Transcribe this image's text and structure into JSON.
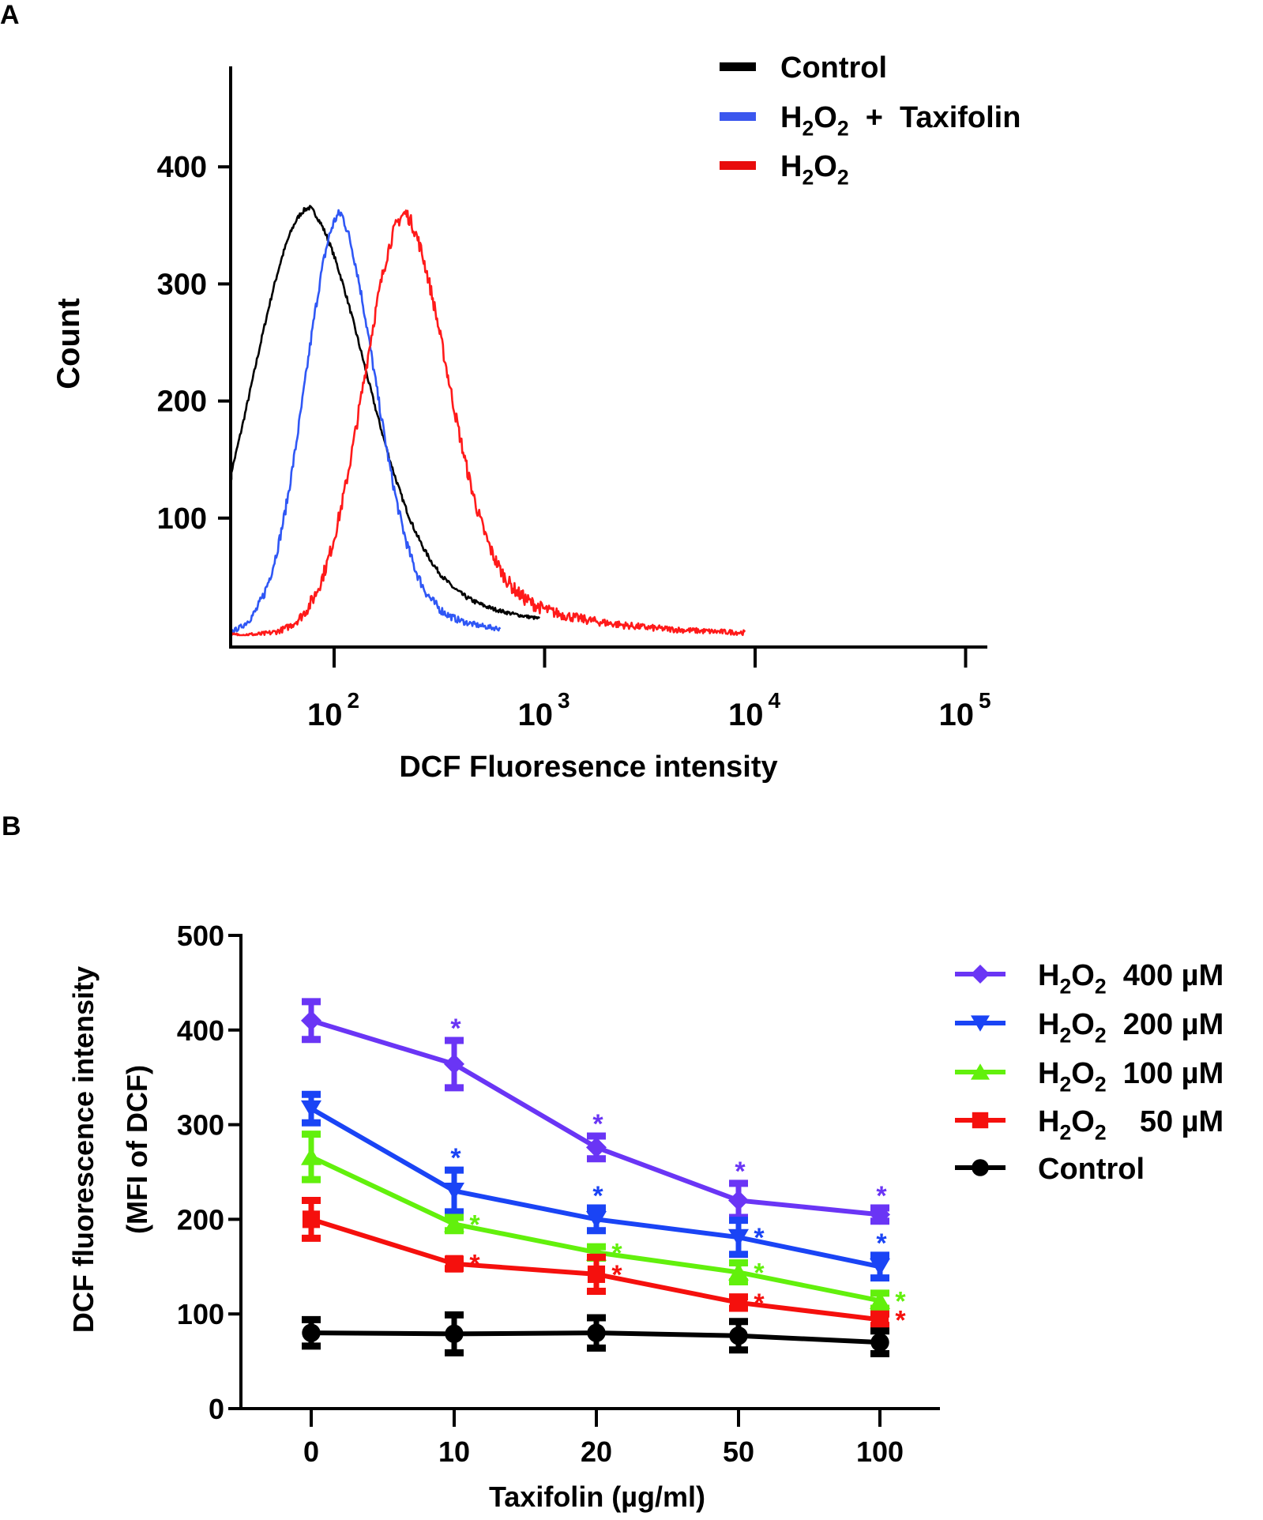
{
  "chart_data": [
    {
      "panel_label": "A",
      "type": "line",
      "subtype": "flow-cytometry-histogram",
      "title": "",
      "xlabel": "DCF Fluoresence intensity",
      "ylabel": "Count",
      "xscale": "log",
      "xlim": [
        32,
        150000
      ],
      "ylim": [
        0,
        470
      ],
      "x_ticks": [
        {
          "value": 100,
          "base": "10",
          "exp": "2"
        },
        {
          "value": 1000,
          "base": "10",
          "exp": "3"
        },
        {
          "value": 10000,
          "base": "10",
          "exp": "4"
        },
        {
          "value": 100000,
          "base": "10",
          "exp": "5"
        }
      ],
      "y_ticks": [
        100,
        200,
        300,
        400
      ],
      "grid": false,
      "legend_position": "top-right",
      "legend": [
        {
          "label": "Control",
          "sub": [],
          "color": "#000000"
        },
        {
          "label_parts": [
            "H",
            "2",
            "O",
            "2",
            "  +  Taxifolin"
          ],
          "color": "#3b57ee"
        },
        {
          "label_parts": [
            "H",
            "2",
            "O",
            "2",
            ""
          ],
          "color": "#e80c0c"
        }
      ],
      "series": [
        {
          "name": "Control",
          "color": "#000000",
          "peak_x": 77,
          "peak_count": 365,
          "log_sigma": 0.27,
          "right_tail": 0.55,
          "noise": 4,
          "x_range": [
            32,
            950
          ]
        },
        {
          "name": "H2O2 + Taxifolin",
          "color": "#2f57f5",
          "peak_x": 108,
          "peak_count": 360,
          "log_sigma": 0.17,
          "right_tail": 0.26,
          "noise": 9,
          "x_range": [
            32,
            620
          ]
        },
        {
          "name": "H2O2",
          "color": "#ff1a1a",
          "peak_x": 220,
          "peak_count": 360,
          "log_sigma": 0.2,
          "right_tail": 0.42,
          "noise": 12,
          "x_range": [
            32,
            9000
          ]
        }
      ]
    },
    {
      "panel_label": "B",
      "type": "line",
      "title": "",
      "xlabel": "Taxifolin (µg/ml)",
      "ylabel": [
        "DCF fluorescence intensity",
        "(MFI of DCF)"
      ],
      "categories": [
        "0",
        "10",
        "20",
        "50",
        "100"
      ],
      "ylim": [
        0,
        500
      ],
      "y_ticks": [
        0,
        100,
        200,
        300,
        400,
        500
      ],
      "grid": false,
      "legend_position": "right",
      "legend": [
        {
          "label_parts": [
            "H",
            "2",
            "O",
            "2",
            "  400 µM"
          ],
          "color": "#6a35f5",
          "marker": "diamond"
        },
        {
          "label_parts": [
            "H",
            "2",
            "O",
            "2",
            "  200 µM"
          ],
          "color": "#1a44f5",
          "marker": "triangle-down"
        },
        {
          "label_parts": [
            "H",
            "2",
            "O",
            "2",
            "  100 µM"
          ],
          "color": "#62f00c",
          "marker": "triangle-up"
        },
        {
          "label_parts": [
            "H",
            "2",
            "O",
            "2",
            "    50 µM"
          ],
          "color": "#f5100d",
          "marker": "square"
        },
        {
          "label_parts": [
            "Control",
            "",
            "",
            "",
            ""
          ],
          "color": "#000000",
          "marker": "circle"
        }
      ],
      "series": [
        {
          "name": "H2O2 400 µM",
          "color": "#6a35f5",
          "marker": "diamond",
          "values": [
            410,
            364,
            276,
            220,
            205
          ],
          "errors": [
            20,
            25,
            12,
            18,
            7
          ],
          "significant": [
            false,
            true,
            true,
            true,
            true
          ],
          "star_pos": [
            "",
            "above",
            "above",
            "above",
            "above"
          ]
        },
        {
          "name": "H2O2 200 µM",
          "color": "#1a44f5",
          "marker": "triangle-down",
          "values": [
            317,
            230,
            200,
            181,
            150
          ],
          "errors": [
            15,
            22,
            12,
            18,
            12
          ],
          "significant": [
            false,
            true,
            true,
            true,
            true
          ],
          "star_pos": [
            "",
            "above",
            "above",
            "right",
            "above"
          ]
        },
        {
          "name": "H2O2 100 µM",
          "color": "#62f00c",
          "marker": "triangle-up",
          "values": [
            266,
            195,
            165,
            144,
            114
          ],
          "errors": [
            24,
            7,
            6,
            10,
            8
          ],
          "significant": [
            false,
            true,
            true,
            true,
            true
          ],
          "star_pos": [
            "",
            "right",
            "right",
            "right",
            "right"
          ]
        },
        {
          "name": "H2O2 50 µM",
          "color": "#f5100d",
          "marker": "square",
          "values": [
            200,
            153,
            142,
            112,
            94
          ],
          "errors": [
            20,
            5,
            18,
            6,
            6
          ],
          "significant": [
            false,
            true,
            true,
            true,
            true
          ],
          "star_pos": [
            "",
            "right",
            "right",
            "right",
            "right"
          ]
        },
        {
          "name": "Control",
          "color": "#000000",
          "marker": "circle",
          "values": [
            80,
            79,
            80,
            77,
            70
          ],
          "errors": [
            14,
            20,
            16,
            15,
            12
          ],
          "significant": [
            false,
            false,
            false,
            false,
            false
          ],
          "star_pos": [
            "",
            "",
            "",
            "",
            ""
          ]
        }
      ]
    }
  ],
  "labels": {
    "panel_a": "A",
    "panel_b": "B",
    "star": "*"
  }
}
